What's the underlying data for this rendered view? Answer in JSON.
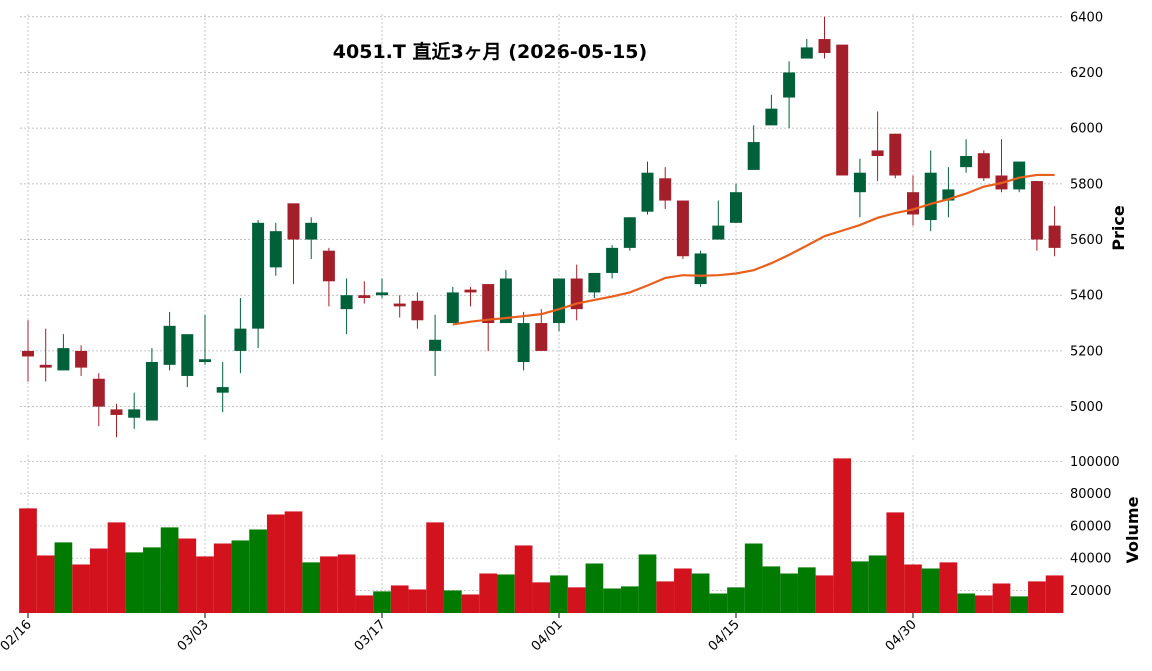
{
  "chart_data": [
    {
      "type": "candlestick",
      "title": "4051.T  直近3ヶ月  (2026-05-15)",
      "y_label": "Price",
      "open": [
        5200,
        5150,
        5130,
        5200,
        5100,
        4990,
        4960,
        4950,
        5150,
        5110,
        5160,
        5050,
        5200,
        5280,
        5500,
        5730,
        5600,
        5560,
        5350,
        5400,
        5400,
        5370,
        5380,
        5200,
        5300,
        5420,
        5440,
        5300,
        5160,
        5300,
        5300,
        5460,
        5410,
        5480,
        5570,
        5700,
        5820,
        5740,
        5440,
        5600,
        5660,
        5850,
        6010,
        6110,
        6250,
        6320,
        6300,
        5770,
        5920,
        5980,
        5770,
        5670,
        5740,
        5860,
        5910,
        5830,
        5780,
        5810,
        5650
      ],
      "high": [
        5310,
        5280,
        5260,
        5220,
        5120,
        5010,
        5050,
        5210,
        5340,
        5260,
        5330,
        5160,
        5390,
        5670,
        5660,
        5730,
        5680,
        5570,
        5460,
        5450,
        5460,
        5400,
        5410,
        5330,
        5430,
        5430,
        5440,
        5490,
        5340,
        5350,
        5460,
        5510,
        5480,
        5580,
        5680,
        5880,
        5860,
        5740,
        5560,
        5740,
        5800,
        6010,
        6120,
        6240,
        6320,
        6400,
        6300,
        5890,
        6060,
        5980,
        5830,
        5920,
        5860,
        5960,
        5920,
        5960,
        5880,
        5810,
        5720
      ],
      "low": [
        5090,
        5090,
        5130,
        5110,
        4930,
        4890,
        4920,
        4950,
        5130,
        5070,
        5150,
        4980,
        5120,
        5210,
        5470,
        5440,
        5530,
        5360,
        5260,
        5370,
        5390,
        5320,
        5280,
        5110,
        5300,
        5360,
        5200,
        5300,
        5130,
        5200,
        5270,
        5310,
        5390,
        5460,
        5560,
        5690,
        5710,
        5530,
        5430,
        5600,
        5660,
        5850,
        6010,
        6000,
        6250,
        6250,
        5830,
        5680,
        5810,
        5820,
        5650,
        5630,
        5680,
        5840,
        5810,
        5770,
        5770,
        5560,
        5540
      ],
      "close": [
        5180,
        5140,
        5210,
        5140,
        5000,
        4970,
        4990,
        5160,
        5290,
        5260,
        5170,
        5070,
        5280,
        5660,
        5630,
        5600,
        5660,
        5450,
        5400,
        5390,
        5410,
        5360,
        5310,
        5240,
        5410,
        5410,
        5300,
        5460,
        5300,
        5200,
        5460,
        5350,
        5480,
        5570,
        5680,
        5840,
        5740,
        5540,
        5550,
        5650,
        5770,
        5950,
        6070,
        6200,
        6290,
        6270,
        5830,
        5840,
        5900,
        5830,
        5690,
        5840,
        5780,
        5900,
        5820,
        5780,
        5880,
        5600,
        5570
      ],
      "up_color": "#00603a",
      "down_color": "#a3202b",
      "series": [
        {
          "color": "#e8601c",
          "values": [
            null,
            null,
            null,
            null,
            null,
            null,
            null,
            null,
            null,
            null,
            null,
            null,
            null,
            null,
            null,
            null,
            null,
            null,
            null,
            null,
            null,
            null,
            null,
            null,
            5295,
            5305,
            5312,
            5318,
            5325,
            5332,
            5350,
            5370,
            5383,
            5395,
            5410,
            5435,
            5462,
            5472,
            5470,
            5472,
            5478,
            5490,
            5515,
            5545,
            5578,
            5612,
            5632,
            5652,
            5678,
            5695,
            5708,
            5728,
            5745,
            5765,
            5790,
            5803,
            5822,
            5832,
            5832
          ]
        }
      ],
      "ylim": [
        4880,
        6410
      ],
      "yticks": [
        5000,
        5200,
        5400,
        5600,
        5800,
        6000,
        6200,
        6400
      ],
      "grid": true
    },
    {
      "type": "bar",
      "y_label": "Volume",
      "categories": [
        "02/16",
        null,
        null,
        null,
        null,
        null,
        null,
        null,
        null,
        null,
        "03/03",
        null,
        null,
        null,
        null,
        null,
        null,
        null,
        null,
        null,
        "03/17",
        null,
        null,
        null,
        null,
        null,
        null,
        null,
        null,
        null,
        "04/01",
        null,
        null,
        null,
        null,
        null,
        null,
        null,
        null,
        null,
        "04/15",
        null,
        null,
        null,
        null,
        null,
        null,
        null,
        null,
        null,
        "04/30",
        null,
        null,
        null,
        null,
        null,
        null,
        null,
        null
      ],
      "values": [
        70900,
        41700,
        49800,
        36100,
        46000,
        62200,
        43600,
        46700,
        59100,
        52200,
        41100,
        49100,
        51000,
        57800,
        67100,
        69000,
        37400,
        41100,
        42300,
        16900,
        19400,
        23100,
        20600,
        62200,
        20000,
        17500,
        30500,
        29900,
        47900,
        25000,
        29300,
        21900,
        36700,
        21200,
        22500,
        42300,
        25600,
        33600,
        30500,
        18100,
        21900,
        49100,
        34900,
        30500,
        34300,
        29300,
        101900,
        38000,
        41700,
        68400,
        36100,
        33600,
        37400,
        18100,
        16900,
        24300,
        16300,
        25600,
        29300
      ],
      "colors": [
        "#d2121d",
        "#d2121d",
        "#007a00",
        "#d2121d",
        "#d2121d",
        "#d2121d",
        "#007a00",
        "#007a00",
        "#007a00",
        "#d2121d",
        "#d2121d",
        "#d2121d",
        "#007a00",
        "#007a00",
        "#d2121d",
        "#d2121d",
        "#007a00",
        "#d2121d",
        "#d2121d",
        "#d2121d",
        "#007a00",
        "#d2121d",
        "#d2121d",
        "#d2121d",
        "#007a00",
        "#d2121d",
        "#d2121d",
        "#007a00",
        "#d2121d",
        "#d2121d",
        "#007a00",
        "#d2121d",
        "#007a00",
        "#007a00",
        "#007a00",
        "#007a00",
        "#d2121d",
        "#d2121d",
        "#007a00",
        "#007a00",
        "#007a00",
        "#007a00",
        "#007a00",
        "#007a00",
        "#007a00",
        "#d2121d",
        "#d2121d",
        "#007a00",
        "#007a00",
        "#d2121d",
        "#d2121d",
        "#007a00",
        "#d2121d",
        "#007a00",
        "#d2121d",
        "#d2121d",
        "#007a00",
        "#d2121d",
        "#d2121d"
      ],
      "ylim": [
        6000,
        104000
      ],
      "yticks": [
        20000,
        40000,
        60000,
        80000,
        100000
      ],
      "grid": true
    }
  ]
}
